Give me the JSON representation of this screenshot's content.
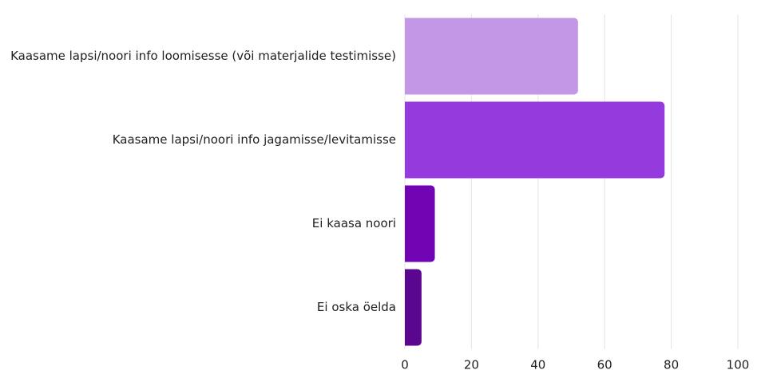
{
  "chart_data": {
    "type": "bar",
    "orientation": "horizontal",
    "title": "",
    "xlabel": "",
    "ylabel": "",
    "categories": [
      "Kaasame lapsi/noori info loomisesse (või materjalide testimisse)",
      "Kaasame lapsi/noori info jagamisse/levitamisse",
      "Ei kaasa noori",
      "Ei oska öelda"
    ],
    "values": [
      52,
      78,
      9,
      5
    ],
    "colors": [
      "#c497e6",
      "#953adc",
      "#7205b3",
      "#5b068f"
    ],
    "xlim": [
      0,
      100
    ],
    "xticks": [
      0,
      20,
      40,
      60,
      80,
      100
    ],
    "grid": true,
    "legend": "none"
  }
}
